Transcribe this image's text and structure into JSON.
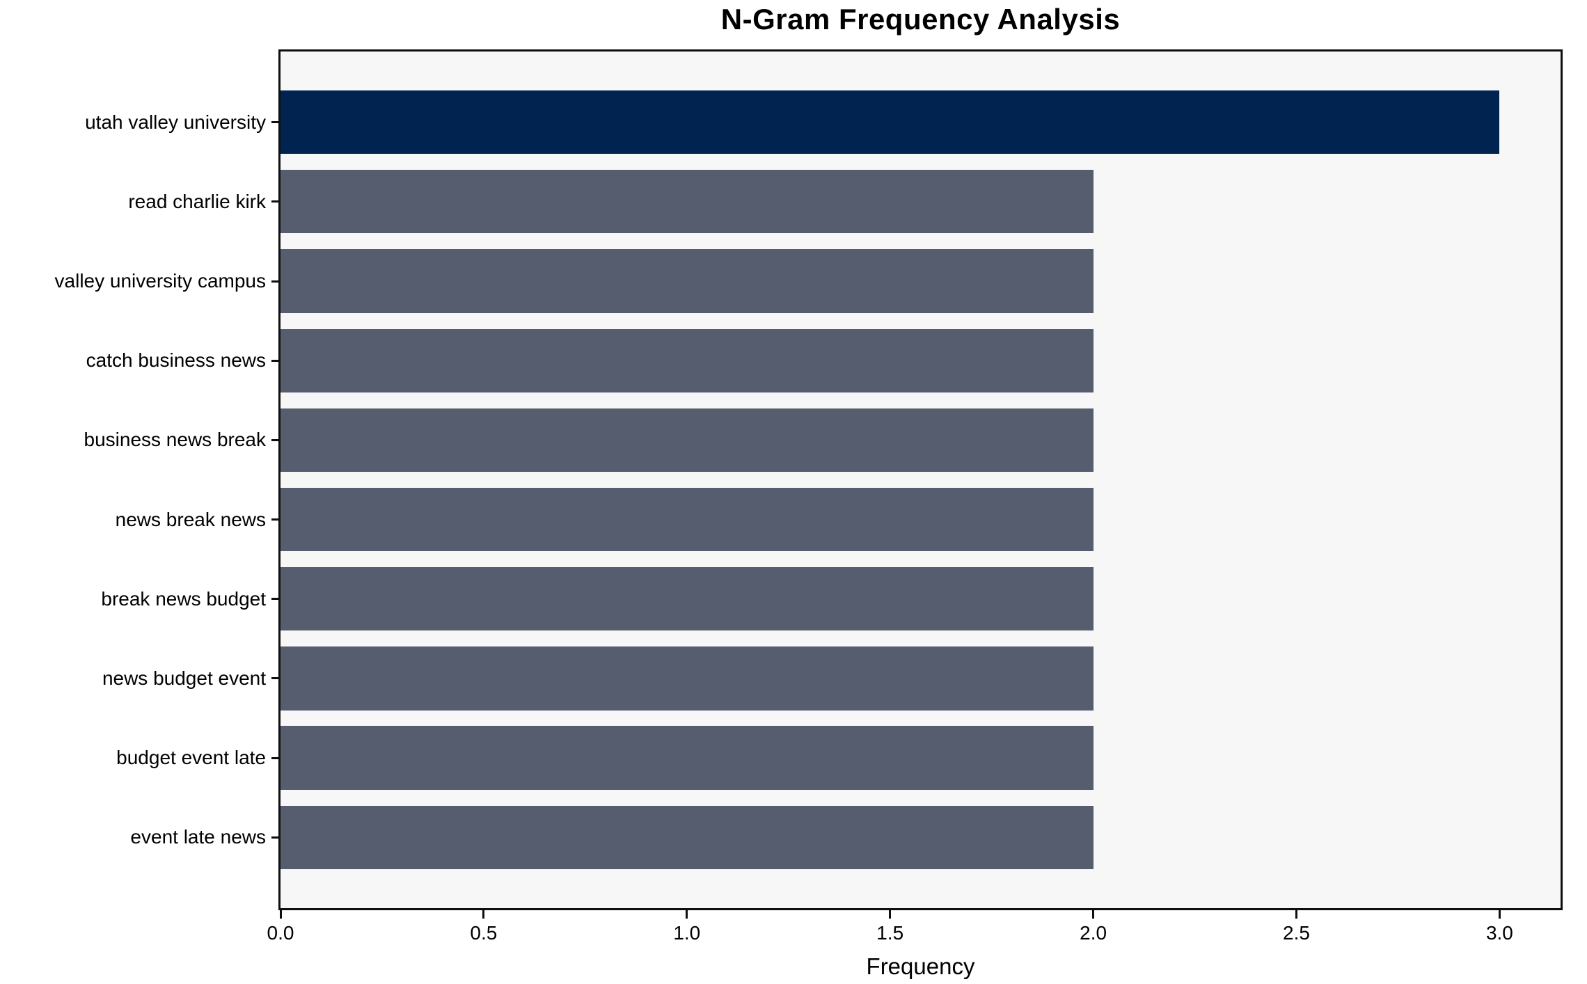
{
  "chart_data": {
    "type": "bar",
    "orientation": "horizontal",
    "title": "N-Gram Frequency Analysis",
    "xlabel": "Frequency",
    "ylabel": "",
    "categories": [
      "utah valley university",
      "read charlie kirk",
      "valley university campus",
      "catch business news",
      "business news break",
      "news break news",
      "break news budget",
      "news budget event",
      "budget event late",
      "event late news"
    ],
    "values": [
      3,
      2,
      2,
      2,
      2,
      2,
      2,
      2,
      2,
      2
    ],
    "xlim": [
      0,
      3.15
    ],
    "xtick_values": [
      0,
      0.5,
      1,
      1.5,
      2,
      2.5,
      3
    ],
    "xtick_labels": [
      "0.0",
      "0.5",
      "1.0",
      "1.5",
      "2.0",
      "2.5",
      "3.0"
    ],
    "highlight_index": 0,
    "bar_height_fraction": 0.8,
    "grid": false,
    "legend_position": "none",
    "colors": {
      "highlight_bar": "#002350",
      "default_bar": "#565d6e",
      "plot_background": "#f7f7f8",
      "figure_background": "#ffffff",
      "text": "#000000",
      "spine": "#0f0f0f"
    }
  }
}
